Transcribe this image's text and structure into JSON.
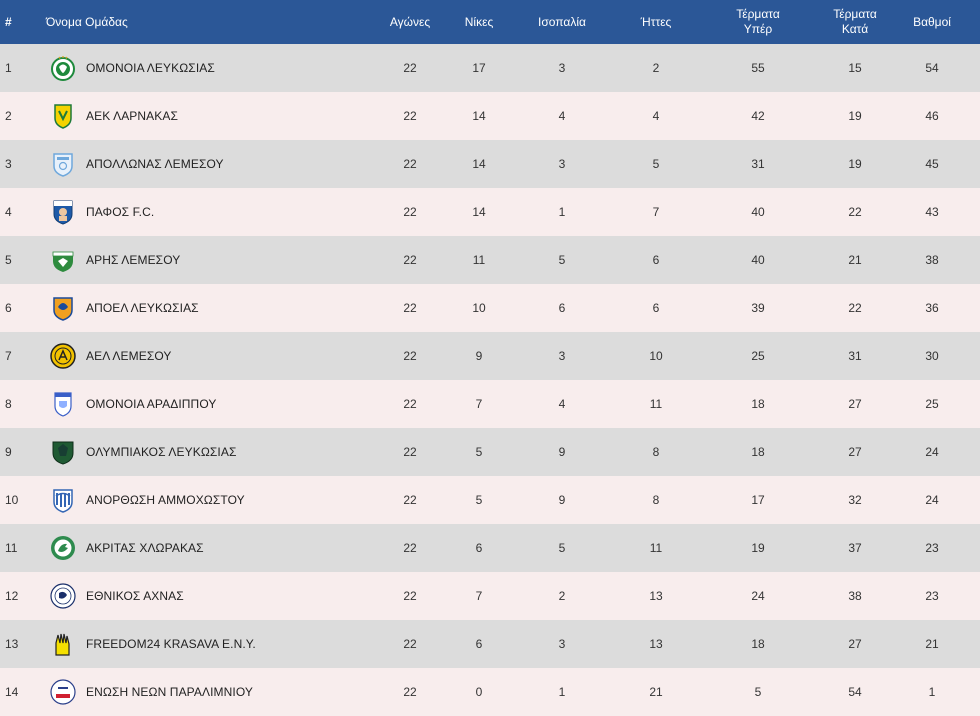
{
  "header": {
    "pos": "#",
    "team": "Όνομα Ομάδας",
    "played": "Αγώνες",
    "wins": "Νίκες",
    "draws": "Ισοπαλία",
    "losses": "Ήττες",
    "goals_for_line1": "Τέρματα",
    "goals_for_line2": "Υπέρ",
    "goals_against_line1": "Τέρματα",
    "goals_against_line2": "Κατά",
    "points": "Βαθμοί"
  },
  "colors": {
    "header_bg": "#2b5797",
    "row_odd": "#dcdcdc",
    "row_even": "#f8eded"
  },
  "rows": [
    {
      "pos": "1",
      "team": "ΟΜΟΝΟΙΑ ΛΕΥΚΩΣΙΑΣ",
      "logo": "omonoia-logo",
      "played": "22",
      "wins": "17",
      "draws": "3",
      "losses": "2",
      "gf": "55",
      "ga": "15",
      "pts": "54"
    },
    {
      "pos": "2",
      "team": "ΑΕΚ ΛΑΡΝΑΚΑΣ",
      "logo": "aek-larnaca-logo",
      "played": "22",
      "wins": "14",
      "draws": "4",
      "losses": "4",
      "gf": "42",
      "ga": "19",
      "pts": "46"
    },
    {
      "pos": "3",
      "team": "ΑΠΟΛΛΩΝΑΣ ΛΕΜΕΣΟΥ",
      "logo": "apollon-logo",
      "played": "22",
      "wins": "14",
      "draws": "3",
      "losses": "5",
      "gf": "31",
      "ga": "19",
      "pts": "45"
    },
    {
      "pos": "4",
      "team": "ΠΑΦΟΣ F.C.",
      "logo": "pafos-logo",
      "played": "22",
      "wins": "14",
      "draws": "1",
      "losses": "7",
      "gf": "40",
      "ga": "22",
      "pts": "43"
    },
    {
      "pos": "5",
      "team": "ΑΡΗΣ ΛΕΜΕΣΟΥ",
      "logo": "aris-logo",
      "played": "22",
      "wins": "11",
      "draws": "5",
      "losses": "6",
      "gf": "40",
      "ga": "21",
      "pts": "38"
    },
    {
      "pos": "6",
      "team": "ΑΠΟΕΛ ΛΕΥΚΩΣΙΑΣ",
      "logo": "apoel-logo",
      "played": "22",
      "wins": "10",
      "draws": "6",
      "losses": "6",
      "gf": "39",
      "ga": "22",
      "pts": "36"
    },
    {
      "pos": "7",
      "team": "ΑΕΛ ΛΕΜΕΣΟΥ",
      "logo": "ael-logo",
      "played": "22",
      "wins": "9",
      "draws": "3",
      "losses": "10",
      "gf": "25",
      "ga": "31",
      "pts": "30"
    },
    {
      "pos": "8",
      "team": "ΟΜΟΝΟΙΑ ΑΡΑΔΙΠΠΟΥ",
      "logo": "omonoia-aradippou-logo",
      "played": "22",
      "wins": "7",
      "draws": "4",
      "losses": "11",
      "gf": "18",
      "ga": "27",
      "pts": "25"
    },
    {
      "pos": "9",
      "team": "ΟΛΥΜΠΙΑΚΟΣ ΛΕΥΚΩΣΙΑΣ",
      "logo": "olympiakos-nicosia-logo",
      "played": "22",
      "wins": "5",
      "draws": "9",
      "losses": "8",
      "gf": "18",
      "ga": "27",
      "pts": "24"
    },
    {
      "pos": "10",
      "team": "ΑΝΟΡΘΩΣΗ ΑΜΜΟΧΩΣΤΟΥ",
      "logo": "anorthosis-logo",
      "played": "22",
      "wins": "5",
      "draws": "9",
      "losses": "8",
      "gf": "17",
      "ga": "32",
      "pts": "24"
    },
    {
      "pos": "11",
      "team": "ΑΚΡΙΤΑΣ ΧΛΩΡΑΚΑΣ",
      "logo": "akritas-logo",
      "played": "22",
      "wins": "6",
      "draws": "5",
      "losses": "11",
      "gf": "19",
      "ga": "37",
      "pts": "23"
    },
    {
      "pos": "12",
      "team": "ΕΘΝΙΚΟΣ ΑΧΝΑΣ",
      "logo": "ethnikos-achnas-logo",
      "played": "22",
      "wins": "7",
      "draws": "2",
      "losses": "13",
      "gf": "24",
      "ga": "38",
      "pts": "23"
    },
    {
      "pos": "13",
      "team": "FREEDOM24 KRASAVA E.N.Y.",
      "logo": "krasava-logo",
      "played": "22",
      "wins": "6",
      "draws": "3",
      "losses": "13",
      "gf": "18",
      "ga": "27",
      "pts": "21"
    },
    {
      "pos": "14",
      "team": "ΕΝΩΣΗ ΝΕΩΝ ΠΑΡΑΛΙΜΝΙΟΥ",
      "logo": "enp-logo",
      "played": "22",
      "wins": "0",
      "draws": "1",
      "losses": "21",
      "gf": "5",
      "ga": "54",
      "pts": "1"
    }
  ]
}
